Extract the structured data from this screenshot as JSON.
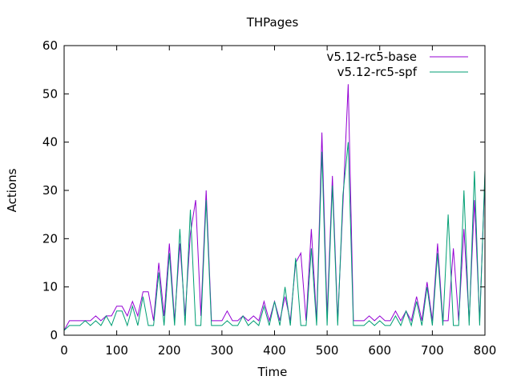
{
  "chart_data": {
    "type": "line",
    "title": "THPages",
    "xlabel": "Time",
    "ylabel": "Actions",
    "xlim": [
      0,
      800
    ],
    "ylim": [
      0,
      60
    ],
    "xticks": [
      0,
      100,
      200,
      300,
      400,
      500,
      600,
      700,
      800
    ],
    "yticks": [
      0,
      10,
      20,
      30,
      40,
      50,
      60
    ],
    "grid": false,
    "legend_position": "top-right",
    "series": [
      {
        "name": "v5.12-rc5-base",
        "color": "#9400d3",
        "x": [
          0,
          10,
          20,
          30,
          40,
          50,
          60,
          70,
          80,
          90,
          100,
          110,
          120,
          130,
          140,
          150,
          160,
          170,
          180,
          190,
          200,
          210,
          220,
          230,
          240,
          250,
          260,
          270,
          280,
          290,
          300,
          310,
          320,
          330,
          340,
          350,
          360,
          370,
          380,
          390,
          400,
          410,
          420,
          430,
          440,
          450,
          460,
          470,
          480,
          490,
          500,
          510,
          520,
          530,
          540,
          550,
          560,
          570,
          580,
          590,
          600,
          610,
          620,
          630,
          640,
          650,
          660,
          670,
          680,
          690,
          700,
          710,
          720,
          730,
          740,
          750,
          760,
          770,
          780,
          790,
          800
        ],
        "y": [
          1,
          3,
          3,
          3,
          3,
          3,
          4,
          3,
          4,
          4,
          6,
          6,
          4,
          7,
          4,
          9,
          9,
          3,
          15,
          4,
          19,
          3,
          19,
          4,
          21,
          28,
          4,
          30,
          3,
          3,
          3,
          5,
          3,
          3,
          4,
          3,
          4,
          3,
          7,
          3,
          7,
          3,
          8,
          3,
          15,
          17,
          3,
          22,
          3,
          42,
          4,
          33,
          3,
          27,
          52,
          3,
          3,
          3,
          4,
          3,
          4,
          3,
          3,
          5,
          3,
          5,
          3,
          8,
          3,
          11,
          3,
          19,
          3,
          3,
          18,
          3,
          22,
          3,
          28,
          3,
          33
        ]
      },
      {
        "name": "v5.12-rc5-spf",
        "color": "#009e73",
        "x": [
          0,
          10,
          20,
          30,
          40,
          50,
          60,
          70,
          80,
          90,
          100,
          110,
          120,
          130,
          140,
          150,
          160,
          170,
          180,
          190,
          200,
          210,
          220,
          230,
          240,
          250,
          260,
          270,
          280,
          290,
          300,
          310,
          320,
          330,
          340,
          350,
          360,
          370,
          380,
          390,
          400,
          410,
          420,
          430,
          440,
          450,
          460,
          470,
          480,
          490,
          500,
          510,
          520,
          530,
          540,
          550,
          560,
          570,
          580,
          590,
          600,
          610,
          620,
          630,
          640,
          650,
          660,
          670,
          680,
          690,
          700,
          710,
          720,
          730,
          740,
          750,
          760,
          770,
          780,
          790,
          800
        ],
        "y": [
          1,
          2,
          2,
          2,
          3,
          2,
          3,
          2,
          4,
          2,
          5,
          5,
          2,
          6,
          2,
          8,
          2,
          2,
          13,
          2,
          17,
          2,
          22,
          2,
          26,
          2,
          2,
          28,
          2,
          2,
          2,
          3,
          2,
          2,
          4,
          2,
          3,
          2,
          6,
          2,
          7,
          2,
          10,
          2,
          16,
          2,
          2,
          18,
          2,
          38,
          2,
          31,
          2,
          29,
          40,
          2,
          2,
          2,
          3,
          2,
          3,
          2,
          2,
          4,
          2,
          5,
          2,
          7,
          2,
          10,
          2,
          17,
          2,
          25,
          2,
          2,
          30,
          2,
          34,
          2,
          34
        ]
      }
    ]
  }
}
